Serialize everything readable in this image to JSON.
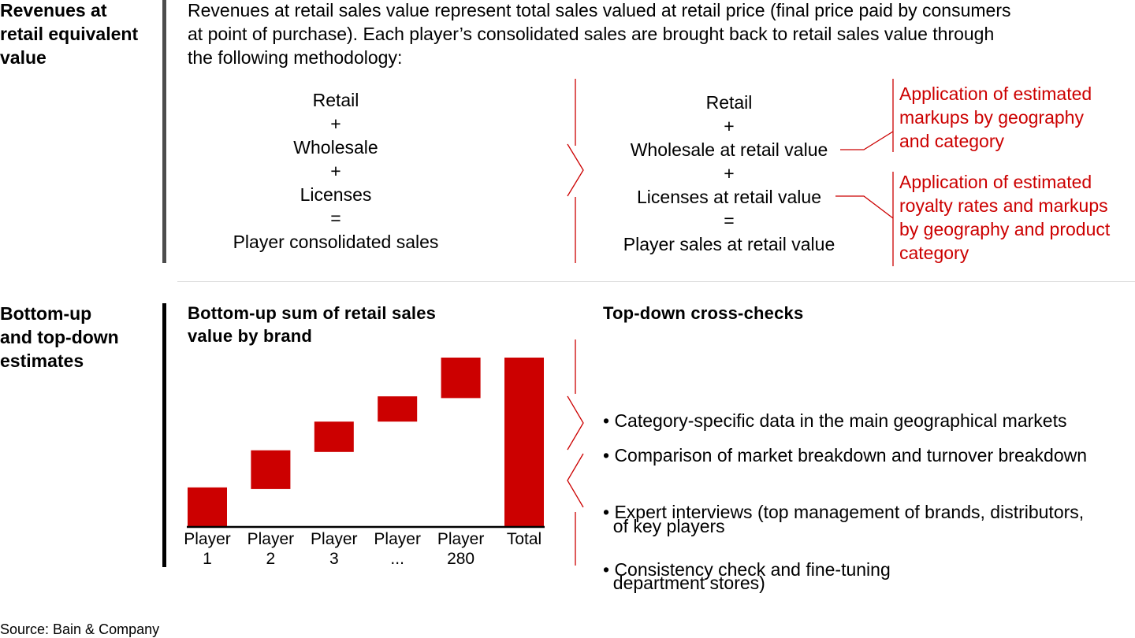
{
  "section1": {
    "heading": [
      "Revenues at",
      "retail equivalent",
      "value"
    ],
    "intro": [
      "Revenues at retail sales value represent total sales valued at retail price (final price paid by consumers",
      "at point of purchase). Each player’s consolidated sales are brought back to retail sales value through",
      "the following methodology:"
    ],
    "left_formula": [
      "Retail",
      "+",
      "Wholesale",
      "+",
      "Licenses",
      "=",
      "Player consolidated sales"
    ],
    "right_formula": [
      "Retail",
      "+",
      "Wholesale at retail value",
      "+",
      "Licenses at retail value",
      "=",
      "Player sales at retail value"
    ],
    "note_markups": [
      "Application of estimated",
      "markups by geography",
      "and category"
    ],
    "note_royalty": [
      "Application of estimated",
      "royalty rates and markups",
      "by geography and product",
      "category"
    ],
    "accent_color": "#cc0000"
  },
  "section2": {
    "heading": [
      "Bottom-up",
      "and top-down",
      "estimates"
    ],
    "chart_title": [
      "Bottom-up sum of retail sales",
      "value by brand"
    ],
    "crosscheck_title": "Top-down cross-checks",
    "bullets": [
      [
        "• Category-specific data in the main geographical markets"
      ],
      [
        "• Comparison of market breakdown and turnover breakdown",
        "  of key players"
      ],
      [
        "• Expert interviews (top management of brands, distributors,",
        "  department stores)"
      ],
      [
        "• Consistency check and fine-tuning"
      ]
    ]
  },
  "chart_data": {
    "type": "waterfall",
    "categories": [
      [
        "Player",
        "1"
      ],
      [
        "Player",
        "2"
      ],
      [
        "Player",
        "3"
      ],
      [
        "Player",
        "..."
      ],
      [
        "Player",
        "280"
      ],
      [
        "Total"
      ]
    ],
    "segments": [
      {
        "start": 0,
        "end": 23
      },
      {
        "start": 22,
        "end": 45
      },
      {
        "start": 44,
        "end": 62
      },
      {
        "start": 62,
        "end": 77
      },
      {
        "start": 76,
        "end": 100
      },
      {
        "start": 0,
        "end": 100
      }
    ],
    "ylim": [
      0,
      100
    ],
    "bar_color": "#cc0000"
  },
  "source": "Source: Bain & Company"
}
